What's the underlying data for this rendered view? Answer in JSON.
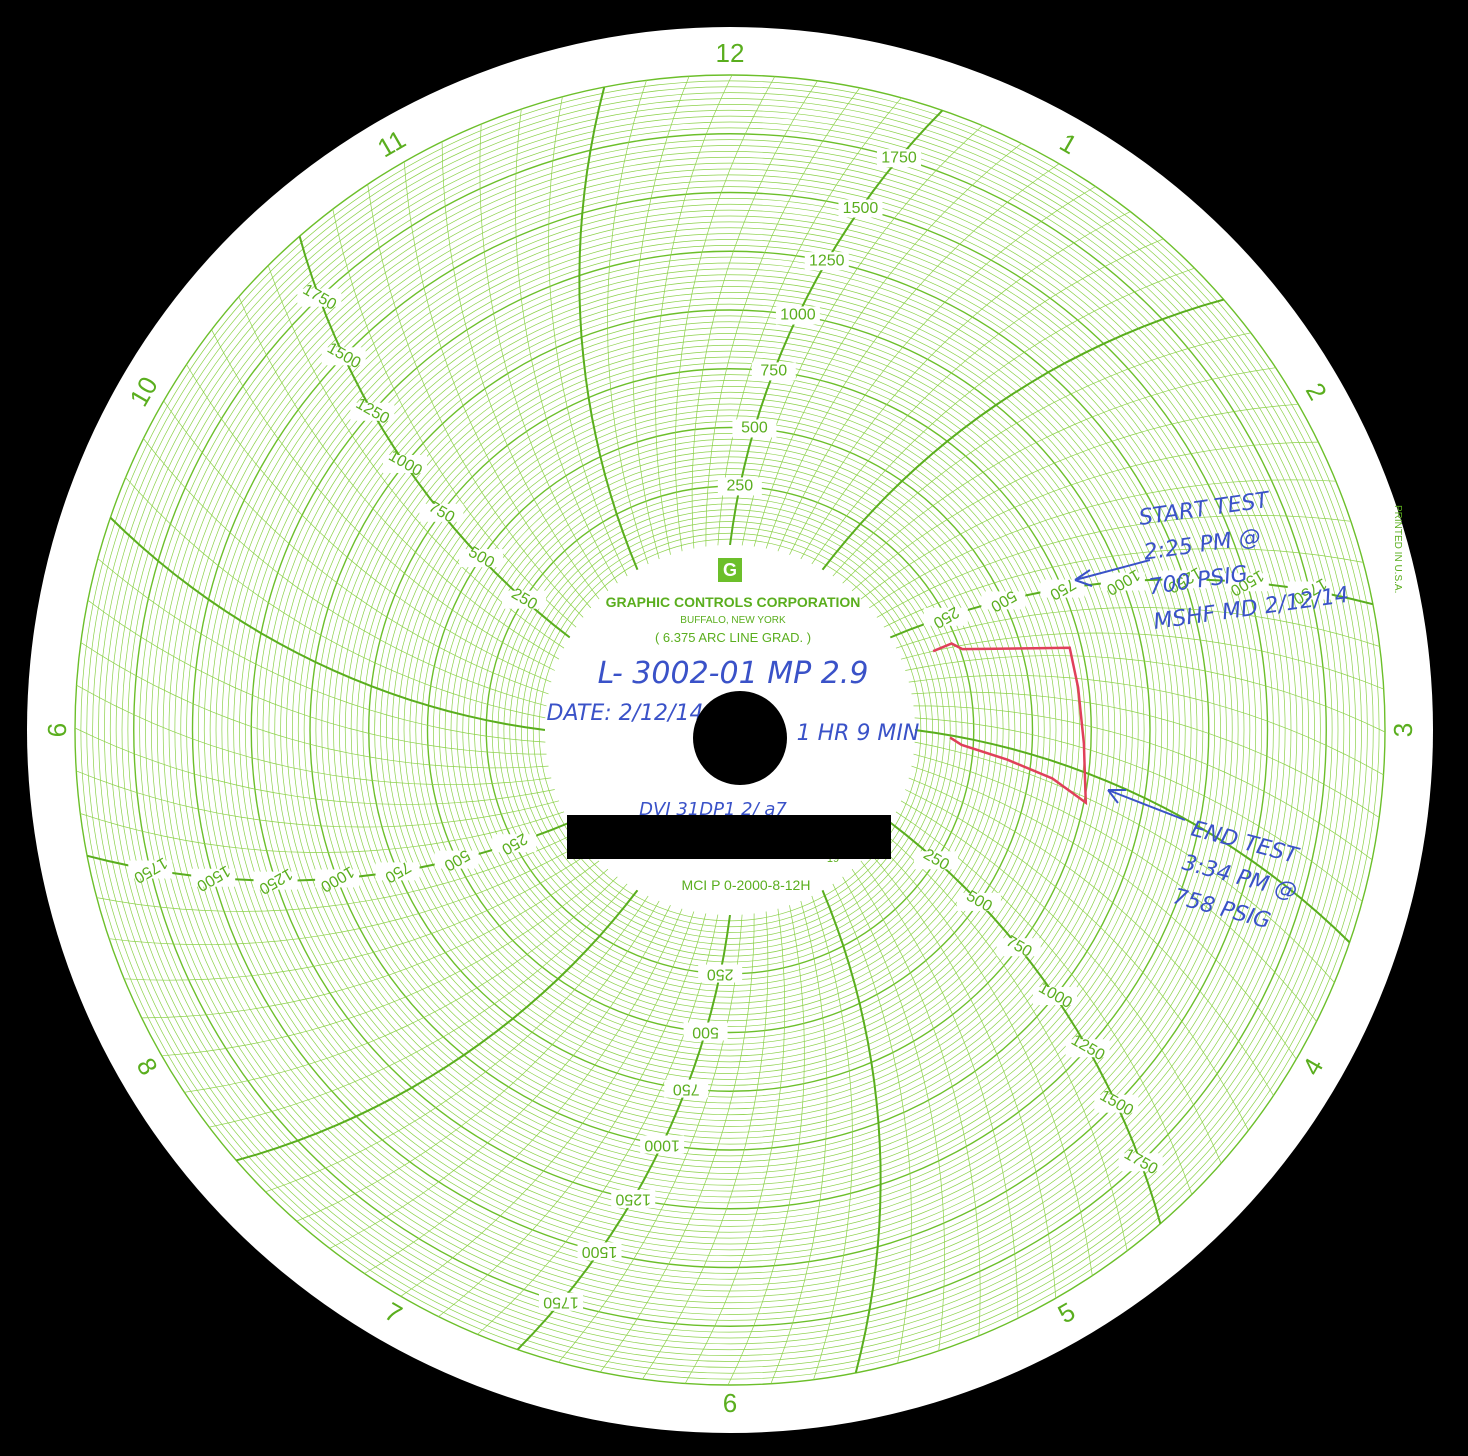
{
  "chart_data": {
    "type": "circular-chart-recorder",
    "manufacturer": "GRAPHIC CONTROLS CORPORATION",
    "location": "BUFFALO, NEW YORK",
    "graduation": "( 6.375 ARC LINE GRAD. )",
    "model": "MCI P 0-2000-8-12H",
    "printed": "PRINTED IN U.S.A.",
    "hour_labels": [
      "12",
      "1",
      "2",
      "3",
      "4",
      "5",
      "6",
      "7",
      "8",
      "9",
      "10",
      "11"
    ],
    "radial_scale": {
      "min": 0,
      "max": 2000,
      "labels": [
        "250",
        "500",
        "750",
        "1000",
        "1250",
        "1500",
        "1750"
      ],
      "label_values": [
        250,
        500,
        750,
        1000,
        1250,
        1500,
        1750
      ]
    },
    "trace": {
      "color": "#e0405a",
      "points": [
        {
          "hour": 2.25,
          "psi": 140
        },
        {
          "hour": 2.22,
          "psi": 225
        },
        {
          "hour": 2.28,
          "psi": 260
        },
        {
          "hour": 2.33,
          "psi": 700
        },
        {
          "hour": 2.55,
          "psi": 705
        },
        {
          "hour": 2.85,
          "psi": 720
        },
        {
          "hour": 3.05,
          "psi": 740
        },
        {
          "hour": 3.15,
          "psi": 758
        },
        {
          "hour": 3.1,
          "psi": 600
        },
        {
          "hour": 3.08,
          "psi": 400
        },
        {
          "hour": 3.06,
          "psi": 200
        },
        {
          "hour": 3.02,
          "psi": 150
        }
      ]
    }
  },
  "label": {
    "id_line": "L- 3002-01  MP 2.9",
    "date_line": "DATE: 2/12/14",
    "duration": "1 HR 9 MIN",
    "partial_line": "DVI 31DP1 2/ a7",
    "partial_right": "19"
  },
  "annotations": {
    "start": [
      "START TEST",
      "2:25 PM @",
      "700 PSIG",
      "MSHF MD 2/12/14"
    ],
    "end": [
      "END TEST",
      "3:34 PM @",
      "758 PSIG"
    ]
  },
  "colors": {
    "grid": "#6cbf2a",
    "paper": "#ffffff",
    "ink": "#3a52c8",
    "trace": "#e0405a"
  }
}
